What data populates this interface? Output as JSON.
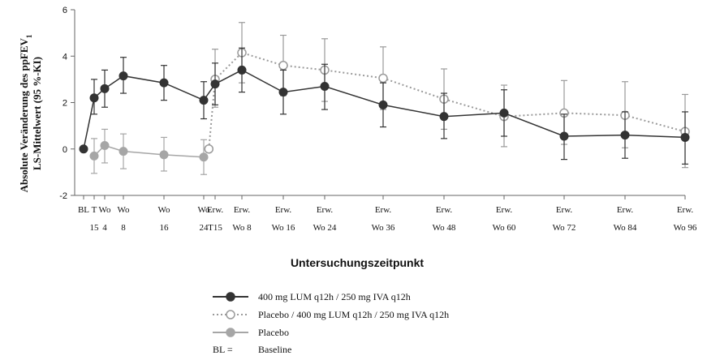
{
  "chart_data": {
    "type": "line",
    "ylabel_line1": "Absolute Veränderung des ppFEV",
    "ylabel_sub": "1",
    "ylabel_line2": "LS-Mittelwert (95 %-KI)",
    "xlabel": "Untersuchungszeitpunkt",
    "ylim": [
      -2,
      6
    ],
    "yticks": [
      "-2",
      "0",
      "2",
      "4",
      "6"
    ],
    "categories": [
      {
        "l1": "BL",
        "l2": ""
      },
      {
        "l1": "T",
        "l2": "15"
      },
      {
        "l1": "Wo",
        "l2": "4"
      },
      {
        "l1": "Wo",
        "l2": "8"
      },
      {
        "l1": "Wo",
        "l2": "16"
      },
      {
        "l1": "Wo",
        "l2": "24"
      },
      {
        "l1": "Erw.",
        "l2": "T15"
      },
      {
        "l1": "Erw.",
        "l2": "Wo 8"
      },
      {
        "l1": "Erw.",
        "l2": "Wo 16"
      },
      {
        "l1": "Erw.",
        "l2": "Wo 24"
      },
      {
        "l1": "Erw.",
        "l2": "Wo 36"
      },
      {
        "l1": "Erw.",
        "l2": "Wo 48"
      },
      {
        "l1": "Erw.",
        "l2": "Wo 60"
      },
      {
        "l1": "Erw.",
        "l2": "Wo 72"
      },
      {
        "l1": "Erw.",
        "l2": "Wo 84"
      },
      {
        "l1": "Erw.",
        "l2": "Wo 96"
      }
    ],
    "series": [
      {
        "name": "400 mg LUM q12h / 250 mg IVA q12h",
        "color": "#333333",
        "style": "solid",
        "marker": "filled",
        "points": [
          {
            "x": 0,
            "y": 0.0
          },
          {
            "x": 1,
            "y": 2.2,
            "lo": 1.5,
            "hi": 3.0
          },
          {
            "x": 2,
            "y": 2.6,
            "lo": 1.8,
            "hi": 3.4
          },
          {
            "x": 3,
            "y": 3.15,
            "lo": 2.4,
            "hi": 3.95
          },
          {
            "x": 4,
            "y": 2.85,
            "lo": 2.1,
            "hi": 3.6
          },
          {
            "x": 5,
            "y": 2.1,
            "lo": 1.3,
            "hi": 2.9
          },
          {
            "x": 6,
            "y": 2.8,
            "lo": 1.9,
            "hi": 3.7
          },
          {
            "x": 7,
            "y": 3.4,
            "lo": 2.45,
            "hi": 4.35
          },
          {
            "x": 8,
            "y": 2.45,
            "lo": 1.5,
            "hi": 3.4
          },
          {
            "x": 9,
            "y": 2.7,
            "lo": 1.7,
            "hi": 3.65
          },
          {
            "x": 10,
            "y": 1.9,
            "lo": 0.95,
            "hi": 2.85
          },
          {
            "x": 11,
            "y": 1.4,
            "lo": 0.45,
            "hi": 2.4
          },
          {
            "x": 12,
            "y": 1.55,
            "lo": 0.55,
            "hi": 2.55
          },
          {
            "x": 13,
            "y": 0.55,
            "lo": -0.45,
            "hi": 1.5
          },
          {
            "x": 14,
            "y": 0.6,
            "lo": -0.4,
            "hi": 1.6
          },
          {
            "x": 15,
            "y": 0.5,
            "lo": -0.65,
            "hi": 1.6
          }
        ]
      },
      {
        "name": "Placebo / 400 mg LUM q12h / 250 mg IVA q12h",
        "color": "#9a9a9a",
        "style": "dotted",
        "marker": "open",
        "points": [
          {
            "x": 5.45,
            "y": 0.0
          },
          {
            "x": 6,
            "y": 3.0,
            "lo": 1.8,
            "hi": 4.3
          },
          {
            "x": 7,
            "y": 4.15,
            "lo": 2.85,
            "hi": 5.45
          },
          {
            "x": 8,
            "y": 3.6,
            "lo": 2.3,
            "hi": 4.9
          },
          {
            "x": 9,
            "y": 3.4,
            "lo": 2.05,
            "hi": 4.75
          },
          {
            "x": 10,
            "y": 3.05,
            "lo": 1.7,
            "hi": 4.4
          },
          {
            "x": 11,
            "y": 2.15,
            "lo": 0.85,
            "hi": 3.45
          },
          {
            "x": 12,
            "y": 1.4,
            "lo": 0.1,
            "hi": 2.75
          },
          {
            "x": 13,
            "y": 1.55,
            "lo": 0.2,
            "hi": 2.95
          },
          {
            "x": 14,
            "y": 1.45,
            "lo": 0.05,
            "hi": 2.9
          },
          {
            "x": 15,
            "y": 0.75,
            "lo": -0.8,
            "hi": 2.35
          }
        ]
      },
      {
        "name": "Placebo",
        "color": "#a6a6a6",
        "style": "solid",
        "marker": "filled",
        "points": [
          {
            "x": 1,
            "y": -0.3,
            "lo": -1.05,
            "hi": 0.45
          },
          {
            "x": 2,
            "y": 0.15,
            "lo": -0.6,
            "hi": 0.85
          },
          {
            "x": 3,
            "y": -0.1,
            "lo": -0.85,
            "hi": 0.65
          },
          {
            "x": 4,
            "y": -0.25,
            "lo": -0.95,
            "hi": 0.5
          },
          {
            "x": 5,
            "y": -0.35,
            "lo": -1.1,
            "hi": 0.4
          }
        ]
      }
    ],
    "legend": [
      {
        "label": "400 mg LUM q12h / 250 mg IVA q12h"
      },
      {
        "label": "Placebo / 400 mg LUM q12h / 250 mg IVA q12h"
      },
      {
        "label": "Placebo"
      },
      {
        "key": "BL =",
        "label": "Baseline"
      }
    ]
  }
}
